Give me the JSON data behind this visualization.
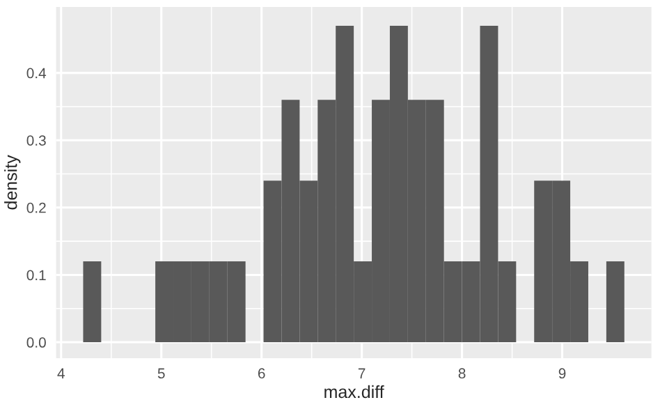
{
  "chart_data": {
    "type": "histogram",
    "xlabel": "max.diff",
    "ylabel": "density",
    "bins": [
      4.22,
      4.4,
      4.58,
      4.76,
      4.94,
      5.12,
      5.3,
      5.48,
      5.66,
      5.84,
      6.02,
      6.2,
      6.38,
      6.56,
      6.74,
      6.92,
      7.1,
      7.28,
      7.46,
      7.64,
      7.82,
      8.0,
      8.18,
      8.36,
      8.54,
      8.72,
      8.9,
      9.08,
      9.26,
      9.44,
      9.62
    ],
    "values": [
      0.12,
      0,
      0,
      0,
      0.12,
      0.12,
      0.12,
      0.12,
      0.12,
      0,
      0.24,
      0.36,
      0.24,
      0.36,
      0.47,
      0.12,
      0.36,
      0.47,
      0.36,
      0.36,
      0.12,
      0.12,
      0.47,
      0.12,
      0,
      0.24,
      0.24,
      0.12,
      0,
      0.12
    ],
    "color": "#595959",
    "xlim": [
      3.95,
      9.89
    ],
    "ylim": [
      -0.0237,
      0.498
    ],
    "xticks": [
      4,
      5,
      6,
      7,
      8,
      9
    ],
    "yticks": [
      {
        "value": 0,
        "label": "0.0"
      },
      {
        "value": 0.1,
        "label": "0.1"
      },
      {
        "value": 0.2,
        "label": "0.2"
      },
      {
        "value": 0.3,
        "label": "0.3"
      },
      {
        "value": 0.4,
        "label": "0.4"
      }
    ],
    "grid": true
  }
}
